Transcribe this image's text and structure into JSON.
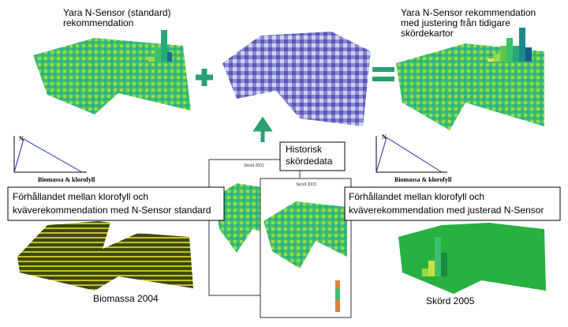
{
  "header": {
    "left_title": {
      "lines": [
        "Yara N-Sensor (standard)",
        "rekommendation"
      ]
    },
    "right_title": {
      "lines": [
        "Yara N-Sensor rekommendation",
        "med justering från tidigare",
        "skördekartor"
      ]
    }
  },
  "historical_box": {
    "lines": [
      "Historisk",
      "skördedata"
    ]
  },
  "graphs": [
    {
      "y_label": "N",
      "x_label": "Biomassa & klorofyll"
    },
    {
      "y_label": "N",
      "x_label": "Biomassa & klorofyll"
    }
  ],
  "captions": [
    {
      "lines": [
        "Förhållandet mellan klorofyll och",
        "kväverekommendation med N-Sensor standard"
      ]
    },
    {
      "lines": [
        "Förhållandet mellan klorofyll och",
        "kväverekommendation med justerad N-Sensor"
      ]
    }
  ],
  "documents": [
    {
      "title": "Skörd 2001"
    },
    {
      "title": "Skörd 2003"
    }
  ],
  "map_labels": [
    "Biomassa 2004",
    "Skörd 2005"
  ]
}
